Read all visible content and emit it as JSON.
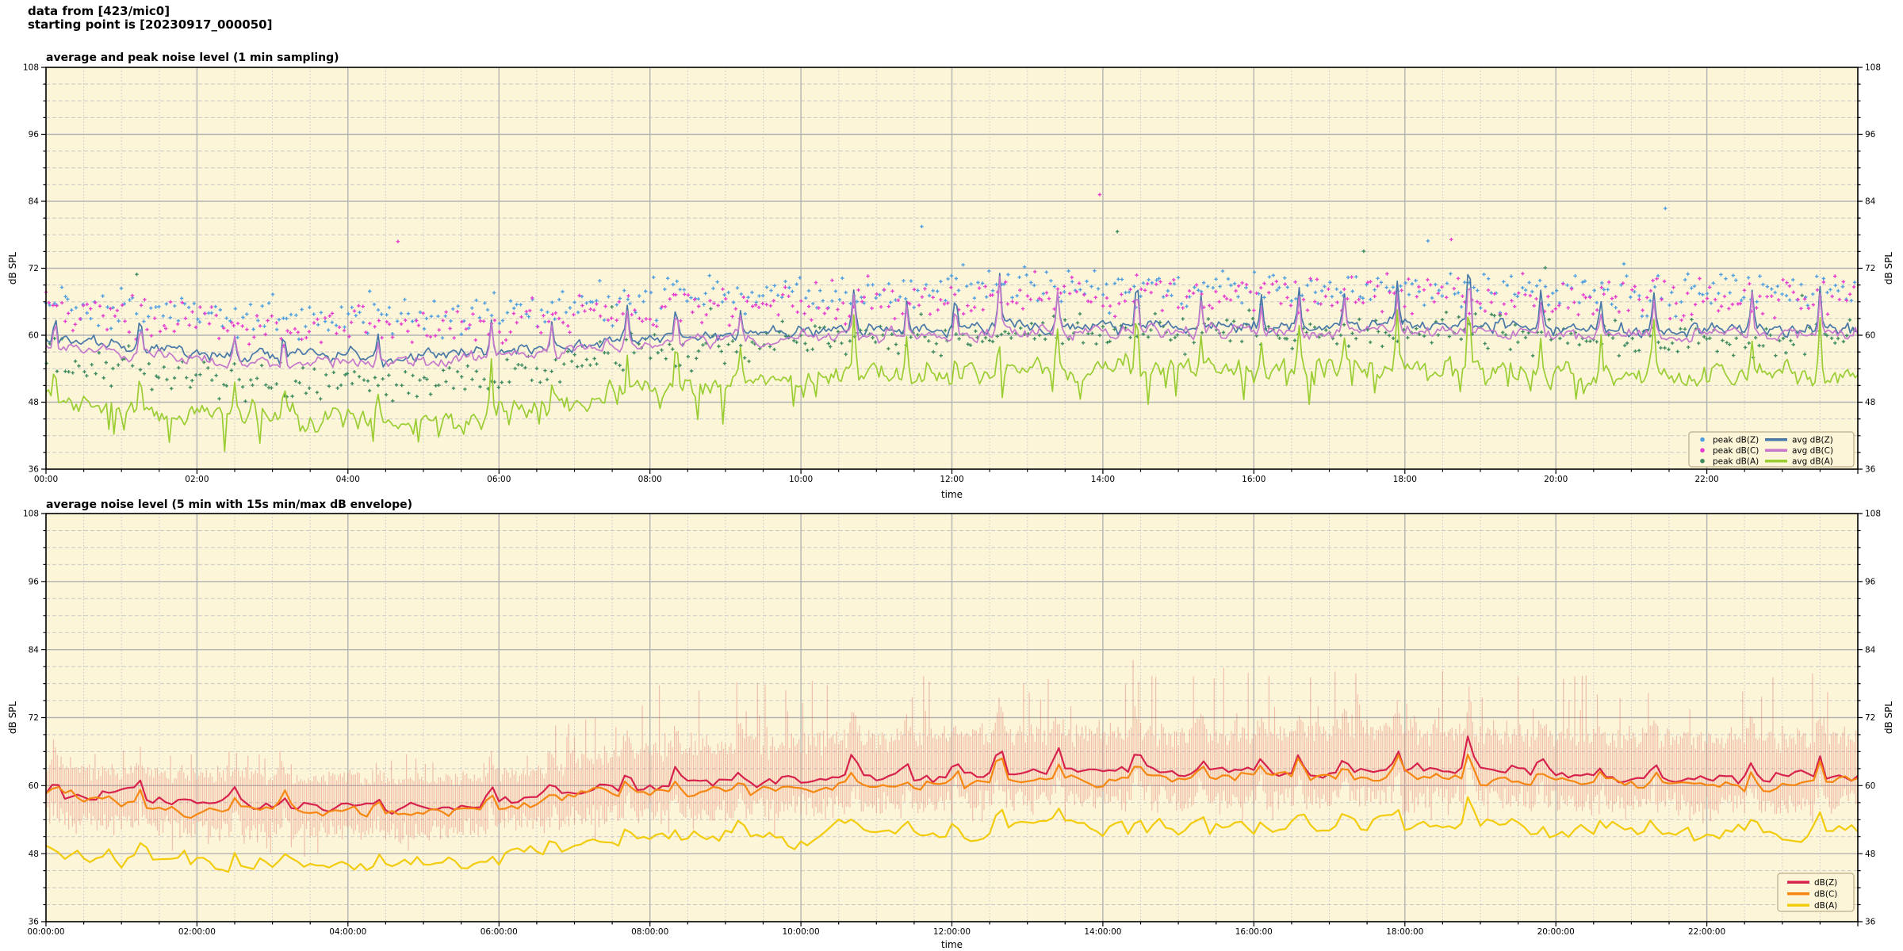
{
  "header": {
    "line1": "data from [423/mic0]",
    "line2": "starting point is [20230917_000050]"
  },
  "colors": {
    "figure_bg": "#ffffff",
    "plot_bg": "#fcf5d8",
    "grid_major": "#b3b3b3",
    "grid_minor": "#c8c8c8",
    "spine": "#000000",
    "legend_bg": "#fcf5d8",
    "legend_border": "#b9ae8c",
    "envelope": "rgba(226,110,100,0.40)"
  },
  "chart_data": [
    {
      "type": "line+scatter",
      "title": "average and peak noise level (1 min sampling)",
      "xlabel": "time",
      "ylabel": "dB SPL",
      "ylabel_right": "dB SPL",
      "x_unit": "hours",
      "xlim": [
        0,
        24
      ],
      "ylim": [
        36,
        108
      ],
      "yticks": [
        36,
        48,
        60,
        72,
        84,
        96,
        108
      ],
      "xtick_hours": [
        0,
        2,
        4,
        6,
        8,
        10,
        12,
        14,
        16,
        18,
        20,
        22
      ],
      "xtick_labels": [
        "00:00",
        "02:00",
        "04:00",
        "06:00",
        "08:00",
        "10:00",
        "12:00",
        "14:00",
        "16:00",
        "18:00",
        "20:00",
        "22:00"
      ],
      "grid": true,
      "legend_position": "lower right",
      "anchor_step_hours": 0.5,
      "seed": 20230917,
      "series": [
        {
          "name": "avg dB(Z)",
          "color": "#4878a8",
          "anchors": [
            59.5,
            58.5,
            58,
            57.5,
            57,
            56.5,
            56.5,
            56,
            56.5,
            56,
            56,
            56.5,
            57,
            57.5,
            58.5,
            59,
            59.5,
            60,
            60,
            60.5,
            60.5,
            61,
            61,
            61,
            61,
            61.5,
            61.5,
            61.5,
            61.5,
            61.5,
            61.5,
            61.5,
            61.5,
            61.5,
            61.5,
            62,
            62,
            62,
            61.5,
            61.5,
            61,
            61,
            61,
            61,
            61,
            61,
            61,
            61.5,
            61.5
          ]
        },
        {
          "name": "avg dB(C)",
          "color": "#c678cc",
          "anchors": [
            58.5,
            57.5,
            57,
            56.5,
            56,
            55.5,
            55.5,
            55,
            55.5,
            55,
            55,
            55.5,
            56,
            56.5,
            57.5,
            58,
            58.5,
            59,
            59,
            59.5,
            59.5,
            60,
            60,
            60,
            60,
            60.5,
            60.5,
            60.5,
            60.5,
            60.5,
            60.5,
            60.5,
            60.5,
            60.5,
            60.5,
            61,
            61,
            61,
            60.5,
            60.5,
            60,
            60,
            60,
            60,
            60,
            60,
            60,
            60.5,
            60.5
          ]
        },
        {
          "name": "avg dB(A)",
          "color": "#9acd32",
          "anchors": [
            49.5,
            48,
            47.5,
            46.5,
            46,
            45.5,
            45.5,
            45,
            45.5,
            45,
            45,
            45.5,
            46.5,
            47.5,
            49,
            50,
            50.5,
            51,
            51.5,
            52,
            52.5,
            53,
            53,
            53,
            53,
            53.5,
            54,
            54,
            54,
            54,
            54,
            54,
            54,
            54,
            54,
            54.5,
            54.5,
            54.5,
            54,
            54,
            53.5,
            53,
            53,
            52.5,
            52.5,
            52.5,
            52.5,
            53,
            53
          ]
        }
      ],
      "scatter": [
        {
          "name": "peak dB(Z)",
          "color": "#4f9fe0",
          "offset_mean": 7.0,
          "offset_spread": 3.2
        },
        {
          "name": "peak dB(C)",
          "color": "#e83bd0",
          "offset_mean": 6.5,
          "offset_spread": 3.4
        },
        {
          "name": "peak dB(A)",
          "color": "#3d8b5f",
          "offset_mean": 6.5,
          "offset_spread": 3.0
        }
      ],
      "noise": {
        "jitter": [
          1.1,
          1.1,
          2.0
        ],
        "spike_factor": [
          1.0,
          0.92,
          1.15
        ]
      },
      "spikes": [
        {
          "t": 0.12,
          "a": 5
        },
        {
          "t": 1.25,
          "a": 6
        },
        {
          "t": 2.5,
          "a": 4.5
        },
        {
          "t": 3.15,
          "a": 5
        },
        {
          "t": 4.4,
          "a": 4.5
        },
        {
          "t": 5.9,
          "a": 7
        },
        {
          "t": 6.7,
          "a": 5
        },
        {
          "t": 7.7,
          "a": 6
        },
        {
          "t": 8.35,
          "a": 6.5
        },
        {
          "t": 9.2,
          "a": 5
        },
        {
          "t": 10.7,
          "a": 8
        },
        {
          "t": 11.4,
          "a": 5.5
        },
        {
          "t": 12.05,
          "a": 6
        },
        {
          "t": 12.63,
          "a": 11
        },
        {
          "t": 13.4,
          "a": 7
        },
        {
          "t": 14.45,
          "a": 9
        },
        {
          "t": 15.3,
          "a": 6
        },
        {
          "t": 16.1,
          "a": 5.5
        },
        {
          "t": 16.6,
          "a": 7
        },
        {
          "t": 17.2,
          "a": 6
        },
        {
          "t": 17.9,
          "a": 8
        },
        {
          "t": 18.85,
          "a": 13
        },
        {
          "t": 19.8,
          "a": 6
        },
        {
          "t": 20.6,
          "a": 5
        },
        {
          "t": 21.3,
          "a": 7
        },
        {
          "t": 22.6,
          "a": 7
        },
        {
          "t": 23.5,
          "a": 8
        }
      ]
    },
    {
      "type": "line+envelope",
      "title": "average noise level (5 min with 15s min/max dB envelope)",
      "xlabel": "time",
      "ylabel": "dB SPL",
      "ylabel_right": "dB SPL",
      "x_unit": "hours",
      "xlim": [
        0,
        24
      ],
      "ylim": [
        36,
        108
      ],
      "yticks": [
        36,
        48,
        60,
        72,
        84,
        96,
        108
      ],
      "xtick_hours": [
        0,
        2,
        4,
        6,
        8,
        10,
        12,
        14,
        16,
        18,
        20,
        22
      ],
      "xtick_labels": [
        "00:00:00",
        "02:00:00",
        "04:00:00",
        "06:00:00",
        "08:00:00",
        "10:00:00",
        "12:00:00",
        "14:00:00",
        "16:00:00",
        "18:00:00",
        "20:00:00",
        "22:00:00"
      ],
      "grid": true,
      "legend_position": "lower right",
      "anchor_step_hours": 0.5,
      "seed": 50,
      "series": [
        {
          "name": "dB(Z)",
          "color": "#d6224c",
          "anchors": [
            59.5,
            58.5,
            58,
            57.5,
            57,
            56.8,
            56.8,
            56.5,
            57,
            56.5,
            56.5,
            57,
            57.5,
            58,
            59,
            59.5,
            60,
            60.3,
            60.5,
            60.8,
            61,
            61.3,
            61.5,
            61.5,
            61.5,
            62,
            62.5,
            62.5,
            62.5,
            62.5,
            62.5,
            62.5,
            62.5,
            62.5,
            62.5,
            63,
            63,
            63,
            62.5,
            62.5,
            62,
            62,
            61.5,
            61.5,
            61.5,
            61.5,
            61.5,
            62,
            62
          ]
        },
        {
          "name": "dB(C)",
          "color": "#f68712",
          "anchors": [
            58.2,
            57.2,
            56.7,
            56.2,
            55.7,
            55.5,
            55.5,
            55.2,
            55.7,
            55.2,
            55.2,
            55.7,
            56.2,
            56.7,
            57.7,
            58.2,
            58.7,
            59,
            59.2,
            59.5,
            59.7,
            60,
            60.2,
            60.2,
            60.2,
            60.7,
            61.2,
            61.2,
            61.2,
            61.2,
            61.2,
            61.2,
            61.2,
            61.2,
            61.2,
            61.7,
            61.7,
            61.7,
            61.2,
            61.2,
            60.7,
            60.7,
            60.2,
            60.2,
            60.2,
            60.2,
            60.2,
            60.7,
            60.7
          ]
        },
        {
          "name": "dB(A)",
          "color": "#f2cc0c",
          "anchors": [
            49,
            48,
            47.5,
            46.8,
            46.5,
            46,
            46,
            45.8,
            46.3,
            46,
            46,
            46.5,
            47,
            47.8,
            49.3,
            50,
            50.5,
            50.8,
            51,
            51.3,
            51.5,
            51.8,
            52,
            52,
            52,
            52.5,
            53,
            52.8,
            52.5,
            52.5,
            52.5,
            52.5,
            52.5,
            52.5,
            52.5,
            53.3,
            53,
            53,
            52.5,
            52.5,
            52,
            52,
            51.5,
            51.5,
            51.5,
            51.5,
            51.5,
            52,
            52
          ]
        }
      ],
      "noise": {
        "jitter": [
          1.2,
          1.2,
          1.9
        ],
        "spike_factor": [
          0.5,
          0.45,
          0.4
        ]
      },
      "spikes": [
        {
          "t": 0.12,
          "a": 5
        },
        {
          "t": 1.25,
          "a": 6
        },
        {
          "t": 2.5,
          "a": 4.5
        },
        {
          "t": 3.15,
          "a": 5
        },
        {
          "t": 4.4,
          "a": 4.5
        },
        {
          "t": 5.9,
          "a": 7
        },
        {
          "t": 6.7,
          "a": 5
        },
        {
          "t": 7.7,
          "a": 6
        },
        {
          "t": 8.35,
          "a": 6.5
        },
        {
          "t": 9.2,
          "a": 5
        },
        {
          "t": 10.7,
          "a": 8
        },
        {
          "t": 11.4,
          "a": 5.5
        },
        {
          "t": 12.05,
          "a": 6
        },
        {
          "t": 12.63,
          "a": 11
        },
        {
          "t": 13.4,
          "a": 7
        },
        {
          "t": 14.45,
          "a": 9
        },
        {
          "t": 15.3,
          "a": 6
        },
        {
          "t": 16.1,
          "a": 5.5
        },
        {
          "t": 16.6,
          "a": 7
        },
        {
          "t": 17.2,
          "a": 6
        },
        {
          "t": 17.9,
          "a": 8
        },
        {
          "t": 18.85,
          "a": 13
        },
        {
          "t": 19.8,
          "a": 6
        },
        {
          "t": 20.6,
          "a": 5
        },
        {
          "t": 21.3,
          "a": 7
        },
        {
          "t": 22.6,
          "a": 7
        },
        {
          "t": 23.5,
          "a": 8
        }
      ],
      "envelope": {
        "applies_to": "dB(Z)",
        "color": "rgba(226,110,100,0.40)",
        "min_below_avg_db": 6,
        "max_above_avg_db_night": 6,
        "max_above_avg_db_day": 17
      }
    }
  ]
}
